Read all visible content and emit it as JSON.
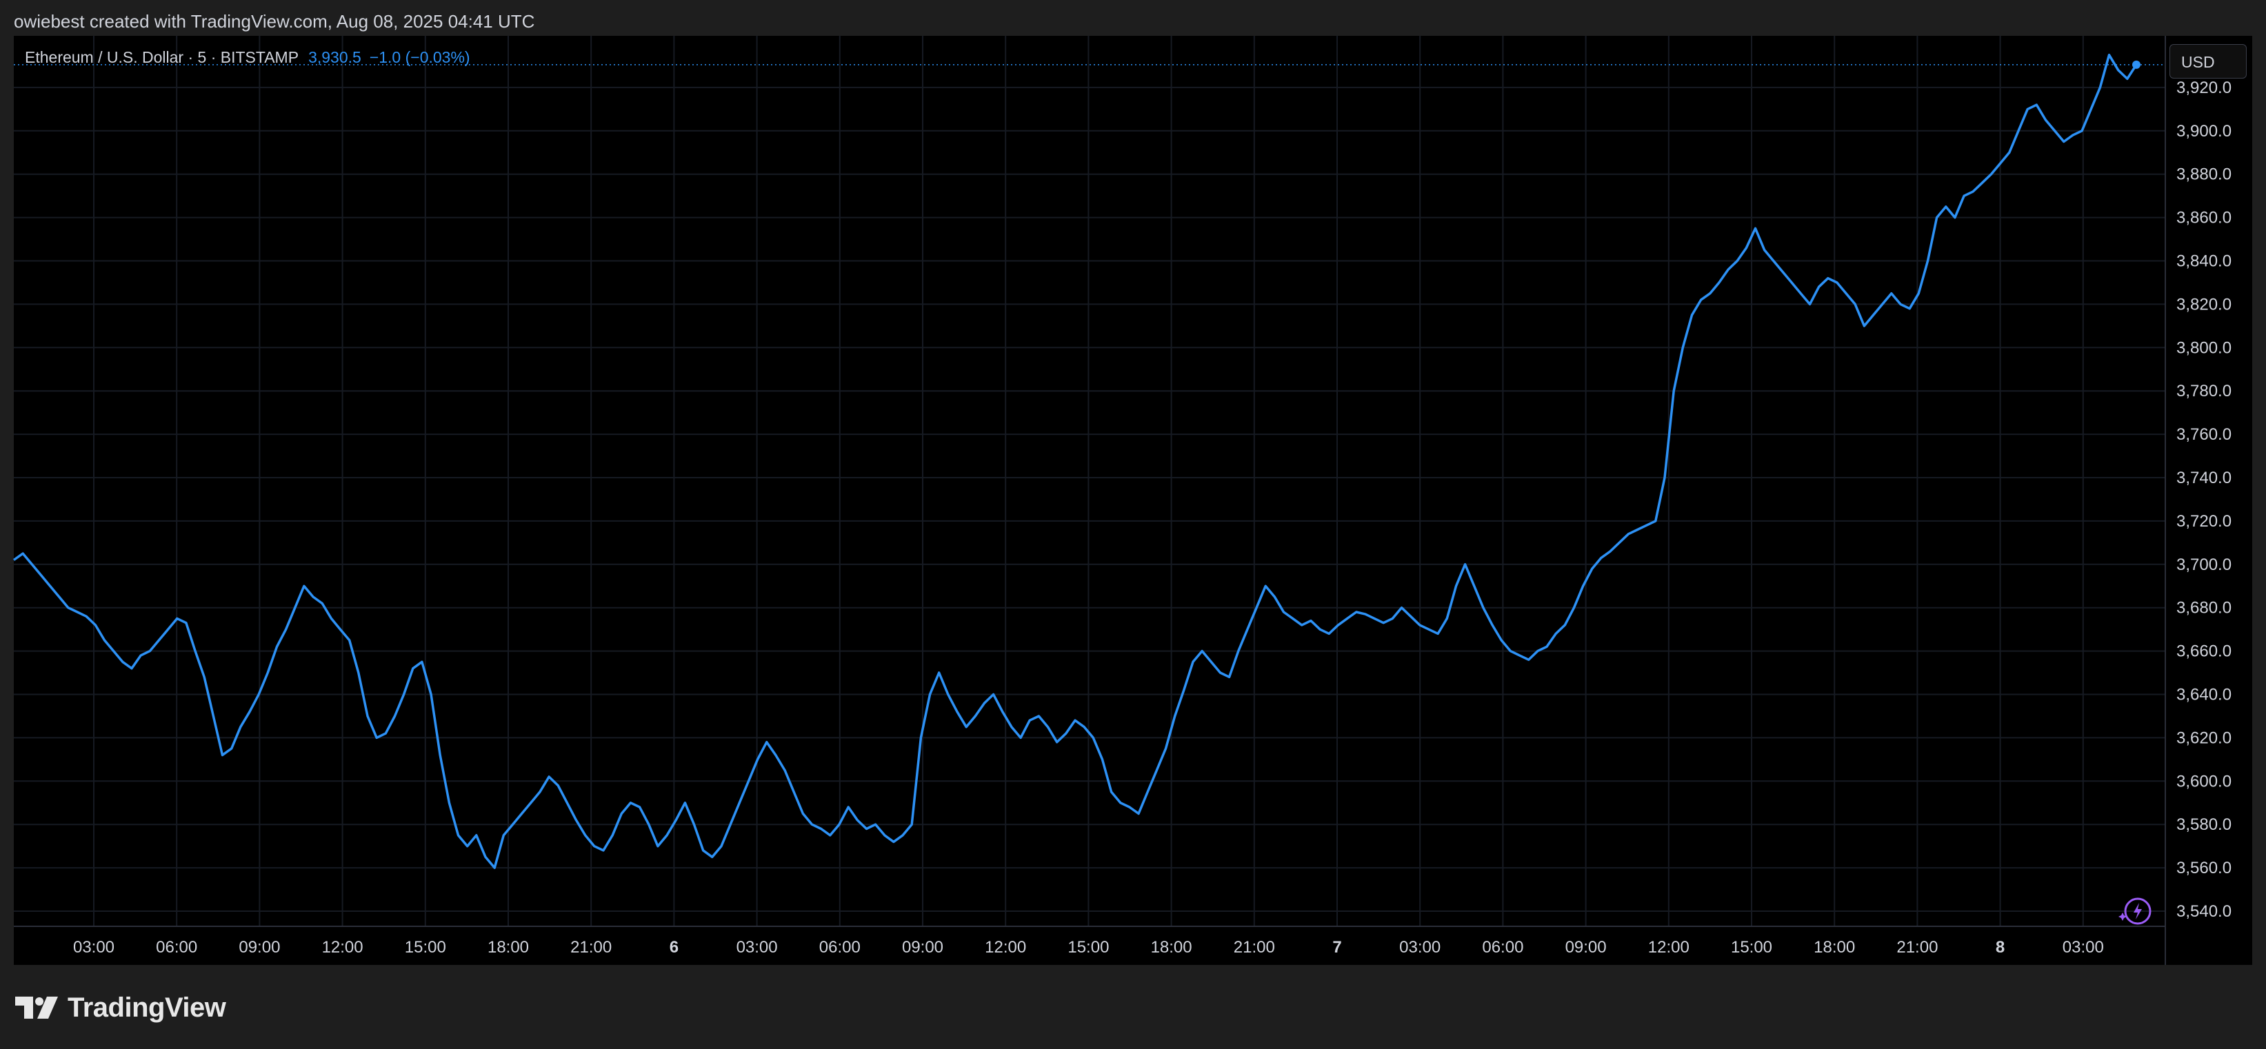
{
  "header": {
    "attribution": "owiebest created with TradingView.com, Aug 08, 2025 04:41 UTC"
  },
  "legend": {
    "symbol": "Ethereum / U.S. Dollar · 5 · BITSTAMP",
    "last_price": "3,930.5",
    "change": "−1.0 (−0.03%)"
  },
  "currency_button": "USD",
  "brand": "TradingView",
  "colors": {
    "line": "#2d91f5",
    "background": "#000000",
    "grid": "#161a22",
    "axis_text": "#d1d4dc",
    "frame": "#1e1e1e"
  },
  "icons": {
    "lightning": "lightning-sparkle-icon",
    "logo": "tradingview-logo-icon"
  },
  "chart_data": {
    "type": "line",
    "series": [
      {
        "values": [
          3702,
          3705,
          3700,
          3695,
          3690,
          3685,
          3680,
          3678,
          3676,
          3672,
          3665,
          3660,
          3655,
          3652,
          3658,
          3660,
          3665,
          3670,
          3675,
          3673,
          3660,
          3648,
          3630,
          3612,
          3615,
          3625,
          3632,
          3640,
          3650,
          3662,
          3670,
          3680,
          3690,
          3685,
          3682,
          3675,
          3670,
          3665,
          3650,
          3630,
          3620,
          3622,
          3630,
          3640,
          3652,
          3655,
          3640,
          3612,
          3590,
          3575,
          3570,
          3575,
          3565,
          3560,
          3575,
          3580,
          3585,
          3590,
          3595,
          3602,
          3598,
          3590,
          3582,
          3575,
          3570,
          3568,
          3575,
          3585,
          3590,
          3588,
          3580,
          3570,
          3575,
          3582,
          3590,
          3580,
          3568,
          3565,
          3570,
          3580,
          3590,
          3600,
          3610,
          3618,
          3612,
          3605,
          3595,
          3585,
          3580,
          3578,
          3575,
          3580,
          3588,
          3582,
          3578,
          3580,
          3575,
          3572,
          3575,
          3580,
          3620,
          3640,
          3650,
          3640,
          3632,
          3625,
          3630,
          3636,
          3640,
          3632,
          3625,
          3620,
          3628,
          3630,
          3625,
          3618,
          3622,
          3628,
          3625,
          3620,
          3610,
          3595,
          3590,
          3588,
          3585,
          3595,
          3605,
          3615,
          3630,
          3642,
          3655,
          3660,
          3655,
          3650,
          3648,
          3660,
          3670,
          3680,
          3690,
          3685,
          3678,
          3675,
          3672,
          3674,
          3670,
          3668,
          3672,
          3675,
          3678,
          3677,
          3675,
          3673,
          3675,
          3680,
          3676,
          3672,
          3670,
          3668,
          3675,
          3690,
          3700,
          3690,
          3680,
          3672,
          3665,
          3660,
          3658,
          3656,
          3660,
          3662,
          3668,
          3672,
          3680,
          3690,
          3698,
          3703,
          3706,
          3710,
          3714,
          3716,
          3718,
          3720,
          3740,
          3780,
          3800,
          3815,
          3822,
          3825,
          3830,
          3836,
          3840,
          3846,
          3855,
          3845,
          3840,
          3835,
          3830,
          3825,
          3820,
          3828,
          3832,
          3830,
          3825,
          3820,
          3810,
          3815,
          3820,
          3825,
          3820,
          3818,
          3825,
          3840,
          3860,
          3865,
          3860,
          3870,
          3872,
          3876,
          3880,
          3885,
          3890,
          3900,
          3910,
          3912,
          3905,
          3900,
          3895,
          3898,
          3900,
          3910,
          3920,
          3935,
          3928,
          3924,
          3930.5
        ],
        "color": "#2d91f5"
      }
    ],
    "x_tick_labels": [
      "03:00",
      "06:00",
      "09:00",
      "12:00",
      "15:00",
      "18:00",
      "21:00",
      "6",
      "03:00",
      "06:00",
      "09:00",
      "12:00",
      "15:00",
      "18:00",
      "21:00",
      "7",
      "03:00",
      "06:00",
      "09:00",
      "12:00",
      "15:00",
      "18:00",
      "21:00",
      "8",
      "03:00"
    ],
    "y_tick_labels": [
      "3,920.0",
      "3,900.0",
      "3,880.0",
      "3,860.0",
      "3,840.0",
      "3,820.0",
      "3,800.0",
      "3,780.0",
      "3,760.0",
      "3,740.0",
      "3,720.0",
      "3,700.0",
      "3,680.0",
      "3,660.0",
      "3,640.0",
      "3,620.0",
      "3,600.0",
      "3,580.0",
      "3,560.0",
      "3,540.0"
    ],
    "ylim": [
      3533,
      3943
    ],
    "last_value": 3930.5,
    "grid": true,
    "axis_position": "right"
  }
}
